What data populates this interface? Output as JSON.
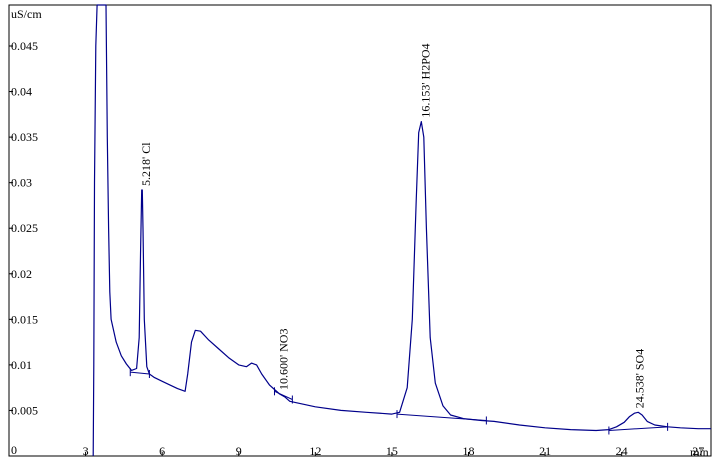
{
  "chart_data": {
    "type": "line",
    "ylabel": "uS/cm",
    "xlabel": "min",
    "xlim": [
      0,
      27.5
    ],
    "ylim": [
      0,
      0.0495
    ],
    "x_ticks": [
      0,
      3,
      6,
      9,
      12,
      15,
      18,
      21,
      24,
      27
    ],
    "y_ticks": [
      {
        "v": 0.045,
        "label": "0.045"
      },
      {
        "v": 0.04,
        "label": "0.04"
      },
      {
        "v": 0.035,
        "label": "0.035"
      },
      {
        "v": 0.03,
        "label": "0.03"
      },
      {
        "v": 0.025,
        "label": "0.025"
      },
      {
        "v": 0.02,
        "label": "0.02"
      },
      {
        "v": 0.015,
        "label": "0.015"
      },
      {
        "v": 0.01,
        "label": "0.01"
      },
      {
        "v": 0.005,
        "label": "0.005"
      },
      {
        "v": 0,
        "label": "0"
      }
    ],
    "series": [
      {
        "color": "#00008b",
        "x": [
          3.3,
          3.32,
          3.35,
          3.4,
          3.45,
          3.5,
          3.8,
          3.85,
          3.9,
          3.95,
          4.0,
          4.2,
          4.4,
          4.6,
          4.8,
          5.0,
          5.1,
          5.15,
          5.2,
          5.22,
          5.25,
          5.3,
          5.4,
          5.5,
          5.7,
          6.0,
          6.3,
          6.6,
          6.9,
          7.0,
          7.15,
          7.3,
          7.5,
          7.8,
          8.2,
          8.6,
          9.0,
          9.3,
          9.5,
          9.7,
          9.9,
          10.2,
          10.4,
          10.6,
          10.8,
          11.0,
          11.5,
          12.0,
          13.0,
          14.0,
          15.0,
          15.3,
          15.6,
          15.8,
          15.95,
          16.05,
          16.15,
          16.25,
          16.35,
          16.5,
          16.7,
          17.0,
          17.3,
          17.8,
          18.5,
          19.0,
          20.0,
          21.0,
          22.0,
          23.0,
          23.5,
          23.8,
          24.1,
          24.3,
          24.5,
          24.65,
          24.8,
          25.0,
          25.3,
          25.8,
          26.3,
          27.0,
          27.5
        ],
        "y": [
          0.0,
          0.01,
          0.03,
          0.045,
          0.0495,
          0.0495,
          0.0495,
          0.035,
          0.025,
          0.018,
          0.015,
          0.0125,
          0.011,
          0.0101,
          0.0094,
          0.0096,
          0.013,
          0.022,
          0.0292,
          0.0292,
          0.025,
          0.015,
          0.0098,
          0.009,
          0.0086,
          0.0082,
          0.0078,
          0.0074,
          0.0071,
          0.009,
          0.0125,
          0.0138,
          0.0137,
          0.0128,
          0.0118,
          0.0108,
          0.01,
          0.0098,
          0.0102,
          0.01,
          0.009,
          0.0078,
          0.0073,
          0.0068,
          0.0065,
          0.006,
          0.0057,
          0.0054,
          0.005,
          0.0048,
          0.0046,
          0.0048,
          0.0075,
          0.015,
          0.028,
          0.0355,
          0.0367,
          0.035,
          0.025,
          0.013,
          0.008,
          0.0055,
          0.0045,
          0.0041,
          0.0039,
          0.0038,
          0.0034,
          0.0031,
          0.0029,
          0.0028,
          0.0029,
          0.0032,
          0.0037,
          0.0043,
          0.0047,
          0.0048,
          0.0045,
          0.0038,
          0.0034,
          0.0032,
          0.0031,
          0.003,
          0.003
        ]
      }
    ],
    "peak_labels": [
      {
        "x": 5.218,
        "y": 0.0292,
        "text": "5.218' Cl"
      },
      {
        "x": 10.6,
        "y": 0.0068,
        "text": "10.600' NO3"
      },
      {
        "x": 16.153,
        "y": 0.0367,
        "text": "16.153' H2PO4"
      },
      {
        "x": 24.538,
        "y": 0.0048,
        "text": "24.538' SO4"
      }
    ],
    "baseline_segments": [
      {
        "x": [
          4.75,
          5.5
        ],
        "y": [
          0.0092,
          0.009
        ]
      },
      {
        "x": [
          10.4,
          11.1
        ],
        "y": [
          0.0071,
          0.0062
        ]
      },
      {
        "x": [
          15.2,
          18.7
        ],
        "y": [
          0.0046,
          0.0039
        ]
      },
      {
        "x": [
          23.5,
          25.8
        ],
        "y": [
          0.0028,
          0.0032
        ]
      }
    ],
    "baseline_ticks": [
      4.75,
      5.5,
      10.4,
      11.1,
      15.2,
      18.7,
      23.5,
      25.8
    ]
  }
}
